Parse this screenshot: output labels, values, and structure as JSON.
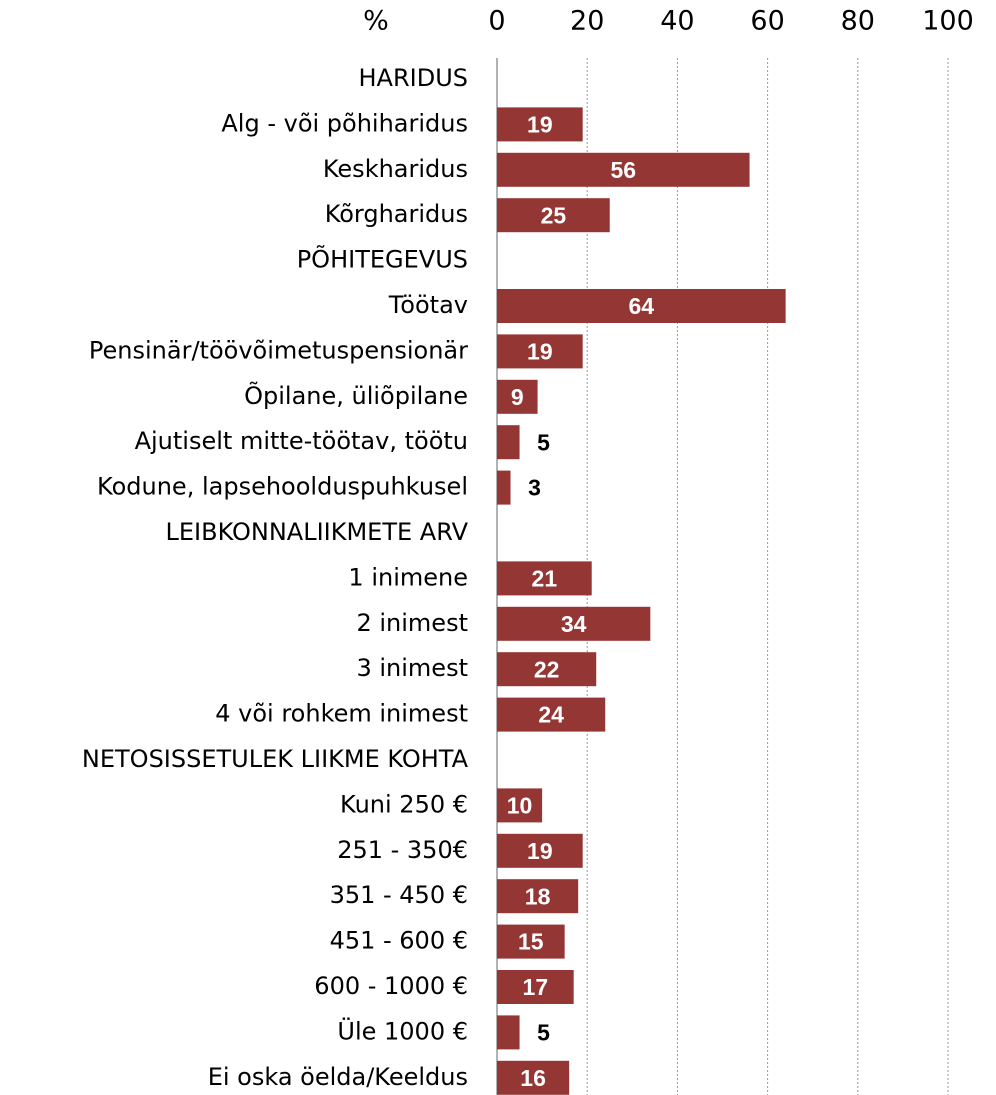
{
  "chart_data": {
    "type": "barh",
    "xlabel": "%",
    "categories": [
      "HARIDUS",
      "Alg - või põhiharidus",
      "Keskharidus",
      "Kõrgharidus",
      "PÕHITEGEVUS",
      "Töötav",
      "Pensinär/töövõimetuspensionär",
      "Õpilane, üliõpilane",
      "Ajutiselt mitte-töötav, töötu",
      "Kodune, lapsehoolduspuhkusel",
      "LEIBKONNALIIKMETE ARV",
      "1 inimene",
      "2 inimest",
      "3 inimest",
      "4 või rohkem inimest",
      "NETOSISSETULEK LIIKME KOHTA",
      "Kuni 250 €",
      "251 - 350€",
      "351 - 450 €",
      "451 - 600 €",
      "600 - 1000 €",
      "Üle 1000 €",
      "Ei oska öelda/Keeldus"
    ],
    "values": [
      null,
      19,
      56,
      25,
      null,
      64,
      19,
      9,
      5,
      3,
      null,
      21,
      34,
      22,
      24,
      null,
      10,
      19,
      18,
      15,
      17,
      5,
      16
    ],
    "color": "#943634",
    "xlim": [
      0,
      100
    ],
    "xticks": [
      0,
      20,
      40,
      60,
      80,
      100
    ],
    "grid": true
  }
}
